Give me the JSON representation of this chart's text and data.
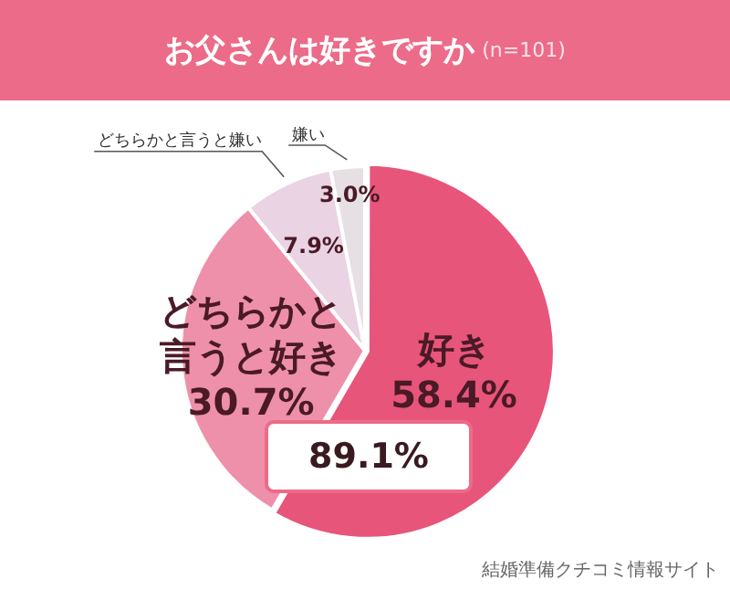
{
  "chart_data": {
    "type": "pie",
    "title": "お父さんは好きですか",
    "subtitle": "(n=101)",
    "categories": [
      "好き",
      "どちらかと言うと好き",
      "どちらかと言うと嫌い",
      "嫌い"
    ],
    "values": [
      58.4,
      30.7,
      7.9,
      3.0
    ],
    "value_labels": [
      "58.4%",
      "30.7%",
      "7.9%",
      "3.0%"
    ],
    "colors": [
      "#e8557a",
      "#ee90aa",
      "#ead3e3",
      "#e6e0e4"
    ],
    "legend": false,
    "annotations": [
      "89.1%",
      "結婚準備クチコミ情報サイト"
    ]
  }
}
